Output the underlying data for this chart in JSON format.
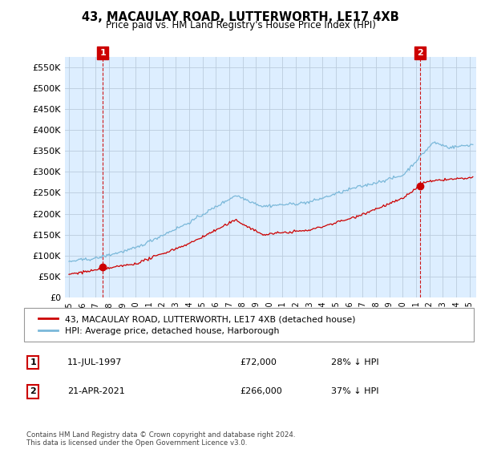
{
  "title": "43, MACAULAY ROAD, LUTTERWORTH, LE17 4XB",
  "subtitle": "Price paid vs. HM Land Registry's House Price Index (HPI)",
  "ylabel_ticks": [
    "£0",
    "£50K",
    "£100K",
    "£150K",
    "£200K",
    "£250K",
    "£300K",
    "£350K",
    "£400K",
    "£450K",
    "£500K",
    "£550K"
  ],
  "ylabel_values": [
    0,
    50000,
    100000,
    150000,
    200000,
    250000,
    300000,
    350000,
    400000,
    450000,
    500000,
    550000
  ],
  "ylim": [
    0,
    575000
  ],
  "xlim_start": 1994.7,
  "xlim_end": 2025.5,
  "point1_x": 1997.53,
  "point1_y": 72000,
  "point1_label": "1",
  "point2_x": 2021.31,
  "point2_y": 266000,
  "point2_label": "2",
  "hpi_color": "#7ab8d9",
  "price_color": "#cc0000",
  "annotation_box_color": "#cc0000",
  "chart_bg_color": "#ddeeff",
  "legend_label_price": "43, MACAULAY ROAD, LUTTERWORTH, LE17 4XB (detached house)",
  "legend_label_hpi": "HPI: Average price, detached house, Harborough",
  "table_row1": [
    "1",
    "11-JUL-1997",
    "£72,000",
    "28% ↓ HPI"
  ],
  "table_row2": [
    "2",
    "21-APR-2021",
    "£266,000",
    "37% ↓ HPI"
  ],
  "footnote": "Contains HM Land Registry data © Crown copyright and database right 2024.\nThis data is licensed under the Open Government Licence v3.0.",
  "background_color": "#ffffff",
  "grid_color": "#bbccdd"
}
